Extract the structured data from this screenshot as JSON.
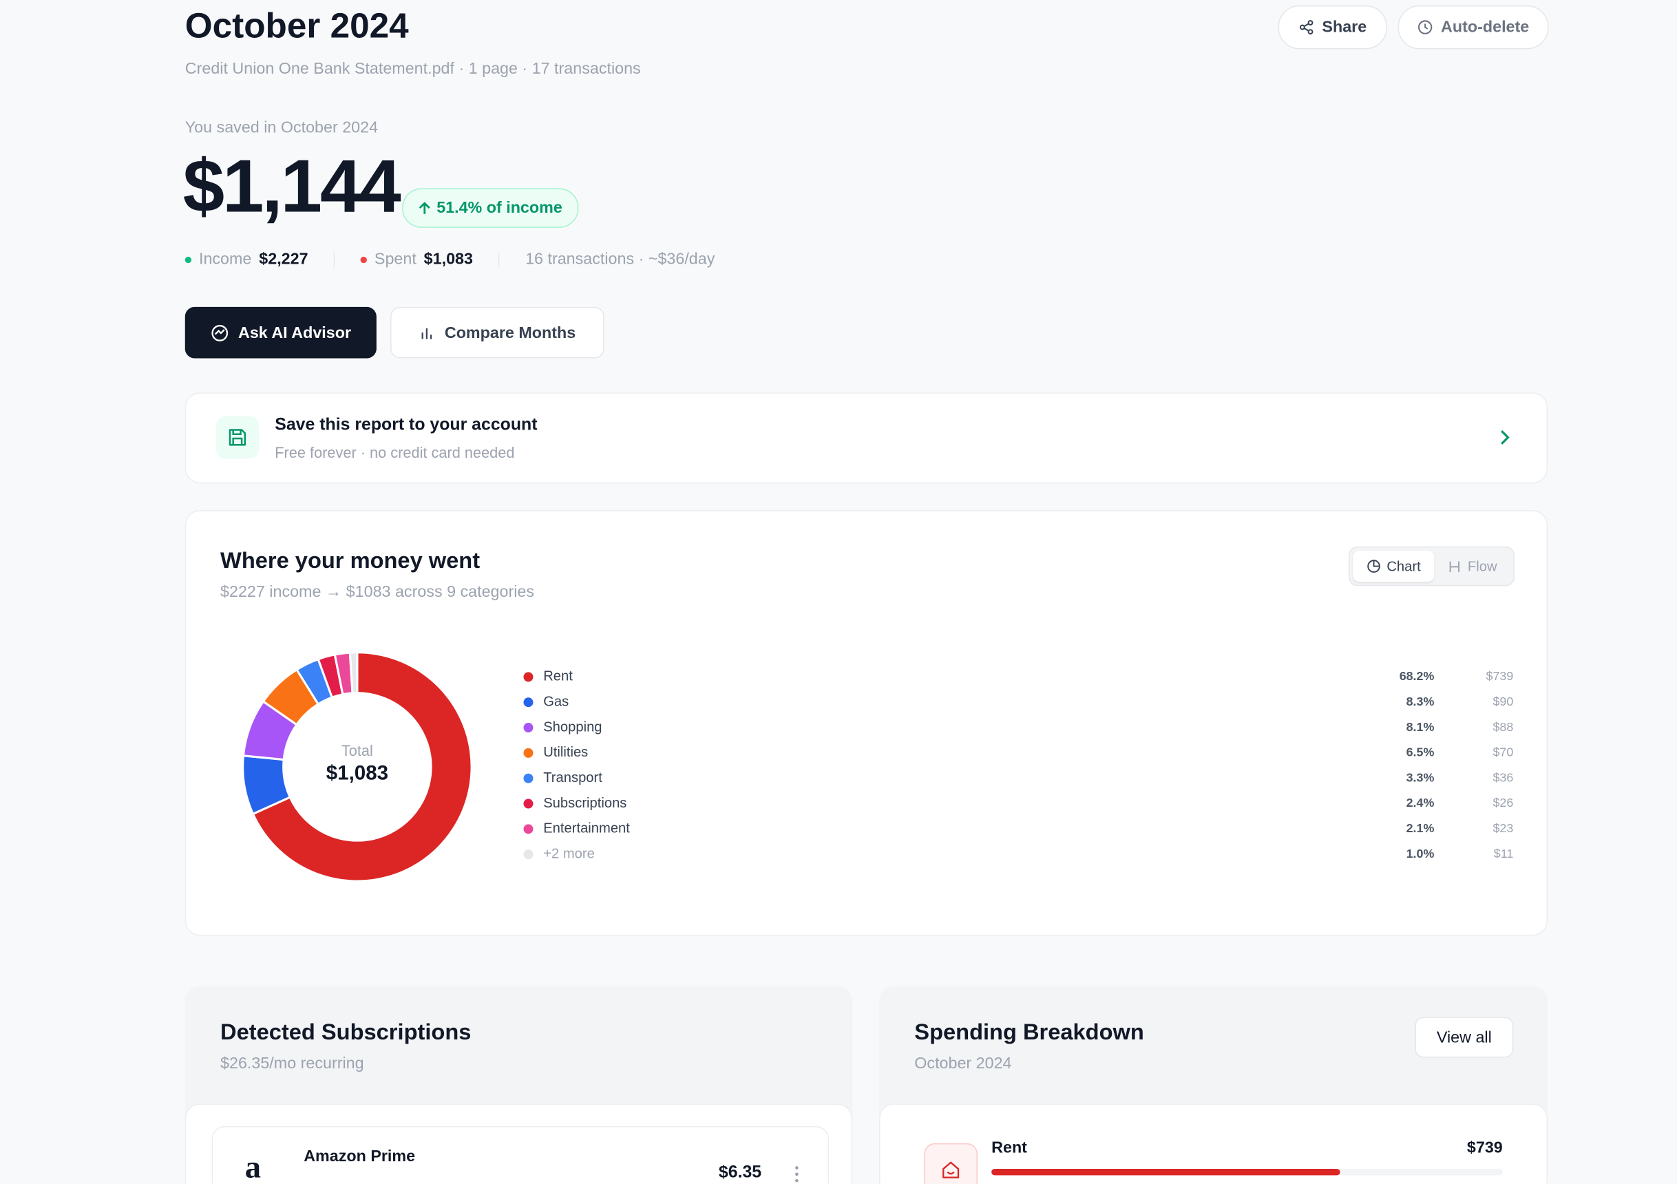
{
  "header": {
    "title": "October 2024",
    "subtitle": "Credit Union One Bank Statement.pdf · 1 page · 17 transactions",
    "actions": [
      "Share",
      "Auto-delete"
    ]
  },
  "summary": {
    "label": "You saved in October 2024",
    "amount": "$1,144",
    "badge": "51.4% of income",
    "income_label": "Income",
    "income": "$2,227",
    "spent_label": "Spent",
    "spent": "$1,083",
    "stats": "16 transactions · ~$36/day"
  },
  "buttons": [
    "Ask AI Advisor",
    "Compare Months"
  ],
  "save_card": {
    "title": "Save this report to your account",
    "subtitle": "Free forever · no credit card needed"
  },
  "chart_data": {
    "type": "donut",
    "title": "Where your money went",
    "subtitle": "$2227 income → $1083 across 9 categories",
    "toggle": [
      "Chart",
      "Flow"
    ],
    "center_label": "Total",
    "center_value": "$1,083",
    "categories": [
      "Rent",
      "Gas",
      "Shopping",
      "Utilities",
      "Transport",
      "Subscriptions",
      "Entertainment",
      "+2 more"
    ],
    "values": [
      739,
      90,
      88,
      70,
      36,
      26,
      23,
      11
    ],
    "value_labels": [
      "$739",
      "$90",
      "$88",
      "$70",
      "$36",
      "$26",
      "$23",
      "$11"
    ],
    "percents": [
      {
        "value": 68.2,
        "label": "68.2%"
      },
      {
        "value": 8.3,
        "label": "8.3%"
      },
      {
        "value": 8.1,
        "label": "8.1%"
      },
      {
        "value": 6.5,
        "label": "6.5%"
      },
      {
        "value": 3.3,
        "label": "3.3%"
      },
      {
        "value": 2.4,
        "label": "2.4%"
      },
      {
        "value": 2.1,
        "label": "2.1%"
      },
      {
        "value": 1.0,
        "label": "1.0%"
      }
    ],
    "colors": [
      "#dc2626",
      "#2563eb",
      "#a855f7",
      "#f97316",
      "#3b82f6",
      "#e11d48",
      "#ec4899",
      "#e5e7eb"
    ]
  },
  "subscriptions": {
    "title": "Detected Subscriptions",
    "subtitle": "$26.35/mo recurring",
    "items": [
      {
        "name": "Amazon Prime",
        "price": "$6.35"
      }
    ]
  },
  "breakdown": {
    "title": "Spending Breakdown",
    "subtitle": "October 2024",
    "action": "View all",
    "items": [
      {
        "name": "Rent",
        "value": 739,
        "value_label": "$739"
      }
    ]
  }
}
